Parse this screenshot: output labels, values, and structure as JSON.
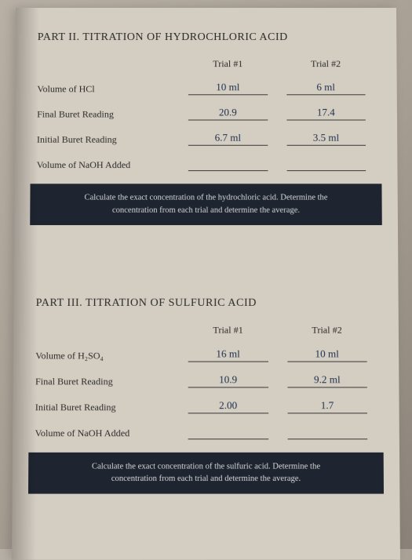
{
  "part2": {
    "title": "PART II. TITRATION OF HYDROCHLORIC ACID",
    "trial1_header": "Trial #1",
    "trial2_header": "Trial #2",
    "rows": {
      "volume_hcl": {
        "label": "Volume of HCl",
        "t1": "10 ml",
        "t2": "6 ml"
      },
      "final_buret": {
        "label": "Final Buret Reading",
        "t1": "20.9",
        "t2": "17.4"
      },
      "initial_buret": {
        "label": "Initial Buret Reading",
        "t1": "6.7 ml",
        "t2": "3.5 ml"
      },
      "volume_naoh": {
        "label": "Volume of NaOH Added",
        "t1": "",
        "t2": ""
      }
    },
    "instruction_l1": "Calculate the exact concentration of the hydrochloric acid. Determine the",
    "instruction_l2": "concentration from each trial and determine the average."
  },
  "part3": {
    "title": "PART III. TITRATION OF SULFURIC ACID",
    "trial1_header": "Trial #1",
    "trial2_header": "Trial #2",
    "rows": {
      "volume_h2so4": {
        "label": "Volume of H₂SO₄",
        "t1": "16 ml",
        "t2": "10 ml"
      },
      "final_buret": {
        "label": "Final Buret Reading",
        "t1": "10.9",
        "t2": "9.2 ml"
      },
      "initial_buret": {
        "label": "Initial Buret Reading",
        "t1": "2.00",
        "t2": "1.7"
      },
      "volume_naoh": {
        "label": "Volume of NaOH Added",
        "t1": "",
        "t2": ""
      }
    },
    "instruction_l1": "Calculate the exact concentration of the sulfuric acid. Determine the",
    "instruction_l2": "concentration from each trial and determine the average."
  },
  "colors": {
    "page_bg": "#d4cdc2",
    "text": "#2a2a2a",
    "handwriting": "#1a2d4a",
    "box_bg": "#1e2530",
    "box_text": "#d8d8d8",
    "underline": "#3a3a3a"
  }
}
